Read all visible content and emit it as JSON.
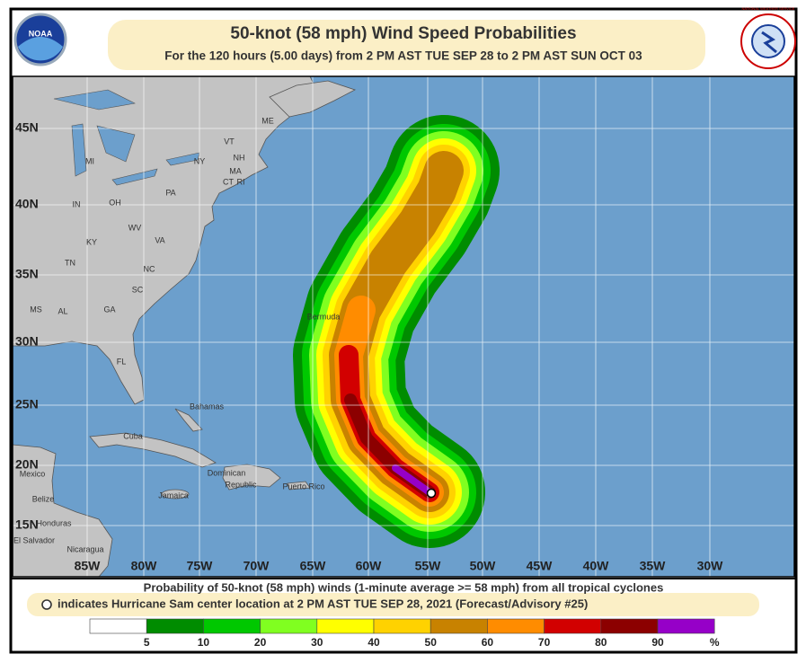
{
  "header": {
    "title": "50-knot (58 mph) Wind Speed Probabilities",
    "subtitle": "For the 120 hours (5.00 days) from 2 PM AST TUE SEP 28 to 2 PM AST SUN OCT 03",
    "left_logo": "NOAA",
    "right_logo": "NATIONAL WEATHER SERVICE"
  },
  "map": {
    "latitude_labels": [
      "45N",
      "40N",
      "35N",
      "30N",
      "25N",
      "20N",
      "15N"
    ],
    "longitude_labels": [
      "85W",
      "80W",
      "75W",
      "70W",
      "65W",
      "60W",
      "55W",
      "50W",
      "45W",
      "40W",
      "35W",
      "30W"
    ],
    "place_labels": [
      "ME",
      "VT",
      "NH",
      "NY",
      "MA",
      "CT",
      "RI",
      "MI",
      "PA",
      "IN",
      "OH",
      "WV",
      "VA",
      "KY",
      "TN",
      "NC",
      "SC",
      "MS",
      "AL",
      "GA",
      "FL",
      "Bermuda",
      "Bahamas",
      "Cuba",
      "Jamaica",
      "Dominican",
      "Republic",
      "Puerto Rico",
      "Mexico",
      "Belize",
      "Honduras",
      "El Salvador",
      "Nicaragua"
    ]
  },
  "footer": {
    "caption_line1": "Probability of 50-knot (58 mph) winds (1-minute average >= 58 mph) from all tropical cyclones",
    "caption_line2": "indicates Hurricane Sam center location at 2 PM AST TUE SEP 28, 2021 (Forecast/Advisory #25)"
  },
  "legend": {
    "ticks": [
      5,
      10,
      20,
      30,
      40,
      50,
      60,
      70,
      80,
      90
    ],
    "unit": "%",
    "colors": [
      "#ffffff",
      "#008c00",
      "#00c800",
      "#80ff20",
      "#ffff00",
      "#ffd200",
      "#c88200",
      "#ff8c00",
      "#d20000",
      "#8c0000",
      "#9600c8"
    ]
  }
}
